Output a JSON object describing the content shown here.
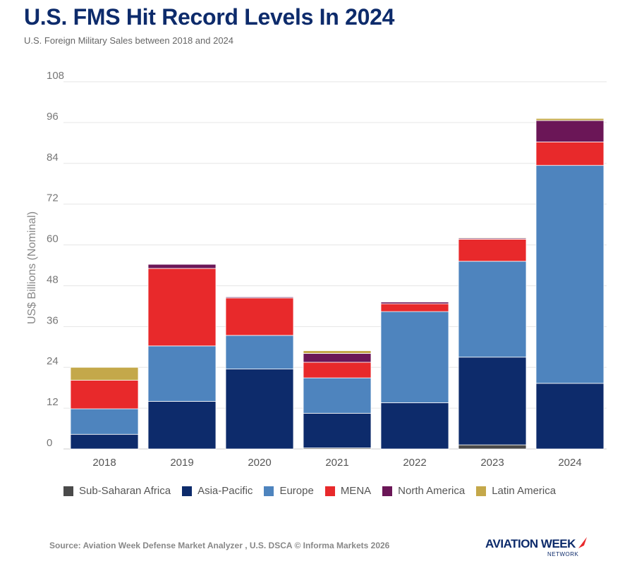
{
  "chart_data": {
    "type": "bar",
    "stacked": true,
    "title": "U.S. FMS Hit Record Levels In 2024",
    "subtitle": "U.S. Foreign Military Sales between 2018 and 2024",
    "ylabel": "US$ Billions (Nominal)",
    "xlabel": "",
    "ylim": [
      0,
      108
    ],
    "yticks": [
      0,
      12,
      24,
      36,
      48,
      60,
      72,
      84,
      96,
      108
    ],
    "categories": [
      "2018",
      "2019",
      "2020",
      "2021",
      "2022",
      "2023",
      "2024"
    ],
    "grid": true,
    "legend_position": "bottom",
    "series": [
      {
        "name": "Sub-Saharan Africa",
        "color": "#4a4a4a",
        "values": [
          0,
          0,
          0,
          0.3,
          0,
          1.2,
          0
        ]
      },
      {
        "name": "Asia-Pacific",
        "color": "#0d2b6b",
        "values": [
          4.3,
          14.0,
          23.5,
          10.2,
          13.6,
          25.8,
          19.3
        ]
      },
      {
        "name": "Europe",
        "color": "#4e84be",
        "values": [
          7.5,
          16.3,
          9.9,
          10.4,
          26.8,
          28.2,
          64.1
        ]
      },
      {
        "name": "MENA",
        "color": "#e8292b",
        "values": [
          8.4,
          22.8,
          11.0,
          4.6,
          2.3,
          6.5,
          6.9
        ]
      },
      {
        "name": "North America",
        "color": "#6b1657",
        "values": [
          0,
          1.2,
          0.3,
          2.6,
          0.5,
          0.3,
          6.3
        ]
      },
      {
        "name": "Latin America",
        "color": "#c4a84a",
        "values": [
          3.8,
          0,
          0,
          0.8,
          0,
          0.2,
          0.6
        ]
      }
    ]
  },
  "footer": {
    "source": "Source: Aviation Week Defense Market Analyzer , U.S. DSCA © Informa Markets 2026",
    "logo_main": "AVIATION WEEK",
    "logo_sub": "NETWORK"
  }
}
